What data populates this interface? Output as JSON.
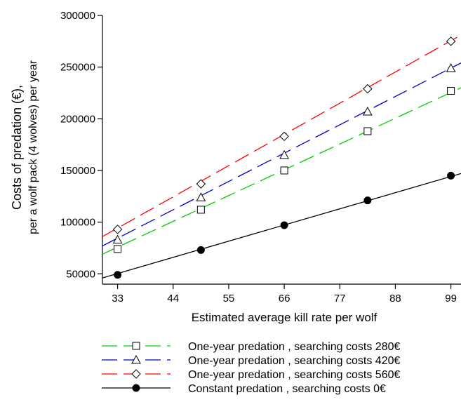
{
  "chart_data": {
    "type": "line",
    "title": "",
    "xlabel": "Estimated average kill rate per wolf",
    "ylabel": "Costs of predation (€),",
    "ylabel2": "per a wolf pack (4 wolves) per year",
    "xlim": [
      30,
      101
    ],
    "ylim": [
      40000,
      300000
    ],
    "xticks": [
      33,
      44,
      55,
      66,
      77,
      88,
      99
    ],
    "yticks": [
      50000,
      100000,
      150000,
      200000,
      250000,
      300000
    ],
    "xticklabels": [
      "33",
      "44",
      "55",
      "66",
      "77",
      "88",
      "99"
    ],
    "yticklabels": [
      "50000",
      "100000",
      "150000",
      "200000",
      "250000",
      "300000"
    ],
    "series": [
      {
        "name": "One-year predation , searching costs 280€",
        "color": "#00cc00",
        "dash": "long-dash",
        "marker": "square-open",
        "x": [
          33,
          49.5,
          66,
          82.5,
          99
        ],
        "y": [
          74000,
          112000,
          150000,
          188000,
          227000
        ],
        "line": {
          "x": [
            30,
            101
          ],
          "y": [
            69000,
            230000
          ]
        }
      },
      {
        "name": "One-year predation , searching costs 420€",
        "color": "#0000cc",
        "dash": "long-dash",
        "marker": "triangle-open",
        "x": [
          33,
          49.5,
          66,
          82.5,
          99
        ],
        "y": [
          83000,
          124000,
          165000,
          207000,
          249000
        ],
        "line": {
          "x": [
            30,
            101
          ],
          "y": [
            77000,
            254000
          ]
        }
      },
      {
        "name": "One-year predation , searching costs 560€",
        "color": "#ff0000",
        "dash": "long-dash",
        "marker": "diamond-open",
        "x": [
          33,
          49.5,
          66,
          82.5,
          99
        ],
        "y": [
          93000,
          137000,
          183000,
          229000,
          275000
        ],
        "line": {
          "x": [
            30,
            101
          ],
          "y": [
            86000,
            281000
          ]
        }
      },
      {
        "name": "Constant predation , searching costs 0€",
        "color": "#000000",
        "dash": "solid",
        "marker": "circle-filled",
        "x": [
          33,
          49.5,
          66,
          82.5,
          99
        ],
        "y": [
          49000,
          73000,
          97000,
          121000,
          145000
        ],
        "line": {
          "x": [
            30,
            101
          ],
          "y": [
            46000,
            147000
          ]
        }
      }
    ]
  }
}
